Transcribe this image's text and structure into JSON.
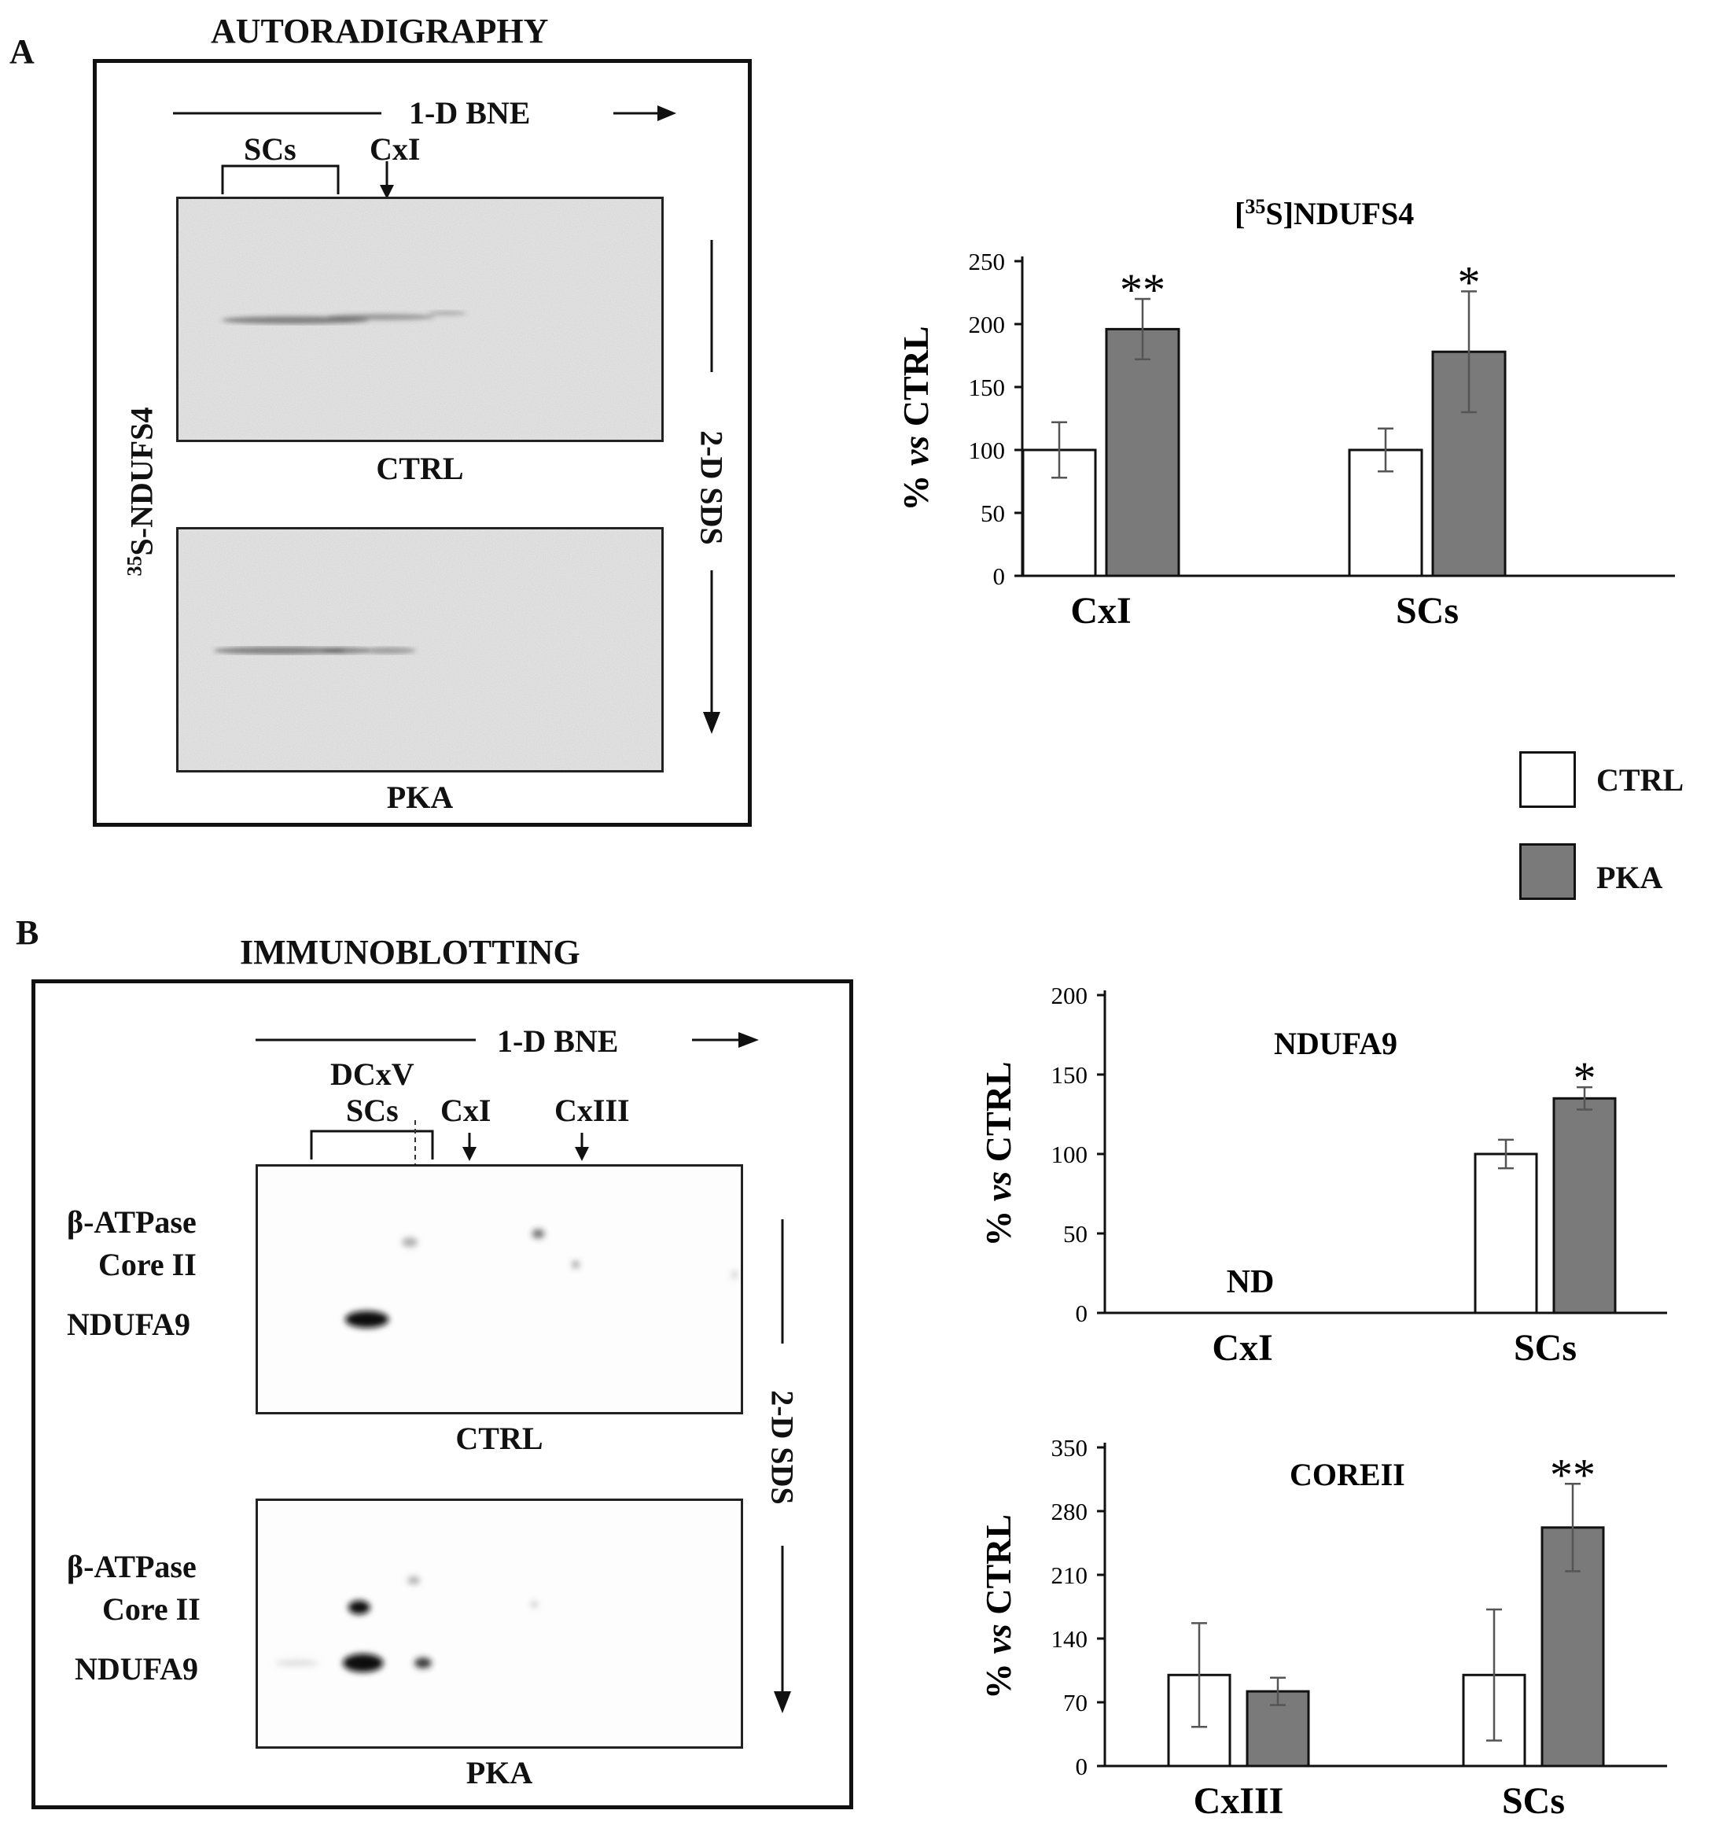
{
  "panel_a": {
    "letter": "A",
    "heading": "AUTORADIGRAPHY",
    "dimension_1": "1-D BNE",
    "dimension_2": "2-D SDS",
    "scs_label": "SCs",
    "cxi_label": "CxI",
    "side_label_sup": "35",
    "side_label_main": "S-NDUFS4",
    "blot_top_label": "CTRL",
    "blot_bottom_label": "PKA"
  },
  "panel_b": {
    "letter": "B",
    "heading": "IMMUNOBLOTTING",
    "dimension_1": "1-D BNE",
    "dimension_2": "2-D SDS",
    "dcxv_label": "DCxV",
    "scs_label": "SCs",
    "cxi_label": "CxI",
    "cxiii_label": "CxIII",
    "row_label_1": "β-ATPase",
    "row_label_2": "Core II",
    "row_label_3": "NDUFA9",
    "blot_top_label": "CTRL",
    "blot_bottom_label": "PKA"
  },
  "legend": {
    "items": [
      {
        "label": "CTRL",
        "color": "#ffffff"
      },
      {
        "label": "PKA",
        "color": "#7a7a7a"
      }
    ]
  },
  "chart_data": [
    {
      "type": "bar",
      "title_prefix": "[",
      "title_sup": "35",
      "title_rest": "S]NDUFS4",
      "ylabel_a": "% ",
      "ylabel_b": "vs",
      "ylabel_c": " CTRL",
      "categories": [
        "CxI",
        "SCs"
      ],
      "ylim": [
        0,
        250
      ],
      "yticks": [
        0,
        50,
        100,
        150,
        200,
        250
      ],
      "series": [
        {
          "name": "CTRL",
          "values": [
            100,
            100
          ],
          "errors": [
            22,
            17
          ],
          "color": "#ffffff"
        },
        {
          "name": "PKA",
          "values": [
            196,
            178
          ],
          "errors": [
            24,
            48
          ],
          "color": "#7a7a7a"
        }
      ],
      "annotations": [
        "**",
        "*"
      ]
    },
    {
      "type": "bar",
      "title": "NDUFA9",
      "ylabel_a": "% ",
      "ylabel_b": "vs",
      "ylabel_c": " CTRL",
      "categories": [
        "CxI",
        "SCs"
      ],
      "ylim": [
        0,
        200
      ],
      "yticks": [
        0,
        50,
        100,
        150,
        200
      ],
      "series": [
        {
          "name": "CTRL",
          "values": [
            null,
            100
          ],
          "errors": [
            null,
            9
          ],
          "color": "#ffffff"
        },
        {
          "name": "PKA",
          "values": [
            null,
            135
          ],
          "errors": [
            null,
            7
          ],
          "color": "#7a7a7a"
        }
      ],
      "annotations": [
        "",
        "*"
      ],
      "nd_label": "ND"
    },
    {
      "type": "bar",
      "title": "COREII",
      "ylabel_a": "% ",
      "ylabel_b": "vs",
      "ylabel_c": " CTRL",
      "categories": [
        "CxIII",
        "SCs"
      ],
      "ylim": [
        0,
        350
      ],
      "yticks": [
        0,
        70,
        140,
        210,
        280,
        350
      ],
      "series": [
        {
          "name": "CTRL",
          "values": [
            100,
            100
          ],
          "errors": [
            57,
            72
          ],
          "color": "#ffffff"
        },
        {
          "name": "PKA",
          "values": [
            82,
            262
          ],
          "errors": [
            15,
            48
          ],
          "color": "#7a7a7a"
        }
      ],
      "annotations": [
        "",
        "**"
      ]
    }
  ]
}
